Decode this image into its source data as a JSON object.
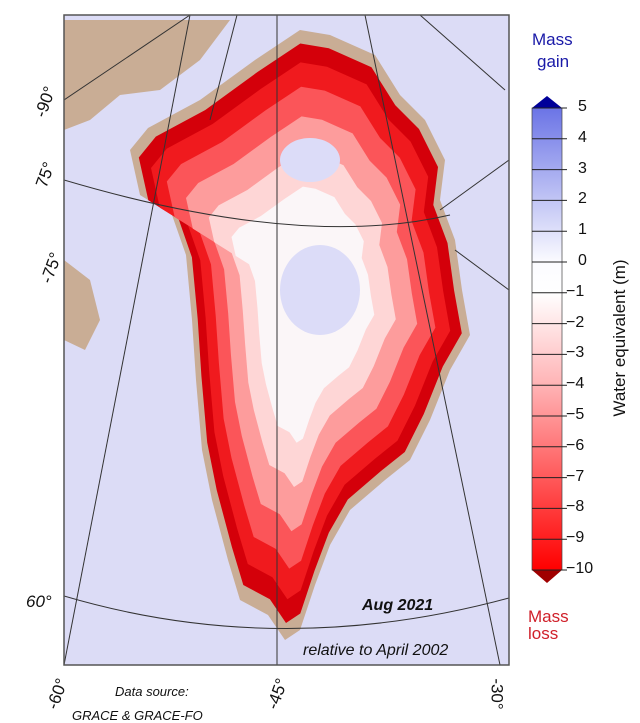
{
  "map": {
    "date_label": "Aug 2021",
    "reference_label": "relative to April 2002",
    "source_label": "Data source:",
    "source_value": "GRACE & GRACE-FO",
    "graticule_labels": {
      "lat_left": [
        "-90°",
        "75°",
        "-75°",
        "60°"
      ],
      "lon_bottom": [
        "-60°",
        "-45°",
        "-30°"
      ]
    },
    "colors": {
      "ocean": "#dcdcf6",
      "land": "#c9ad95",
      "loss": "#e8000a",
      "gain": "#7f86e0"
    }
  },
  "colorbar": {
    "top_label_1": "Mass",
    "top_label_2": "gain",
    "bottom_label_1": "Mass",
    "bottom_label_2": "loss",
    "axis_title": "Water equivalent (m)",
    "ticks": [
      "5",
      "4",
      "3",
      "2",
      "1",
      "0",
      "−1",
      "−2",
      "−3",
      "−4",
      "−5",
      "−6",
      "−7",
      "−8",
      "−9",
      "−10"
    ],
    "range": [
      -10,
      5
    ],
    "colors": {
      "max": "#2a3ad0",
      "mid": "#ffffff",
      "min": "#ff0000",
      "over": "#000099",
      "under": "#a00000"
    }
  }
}
